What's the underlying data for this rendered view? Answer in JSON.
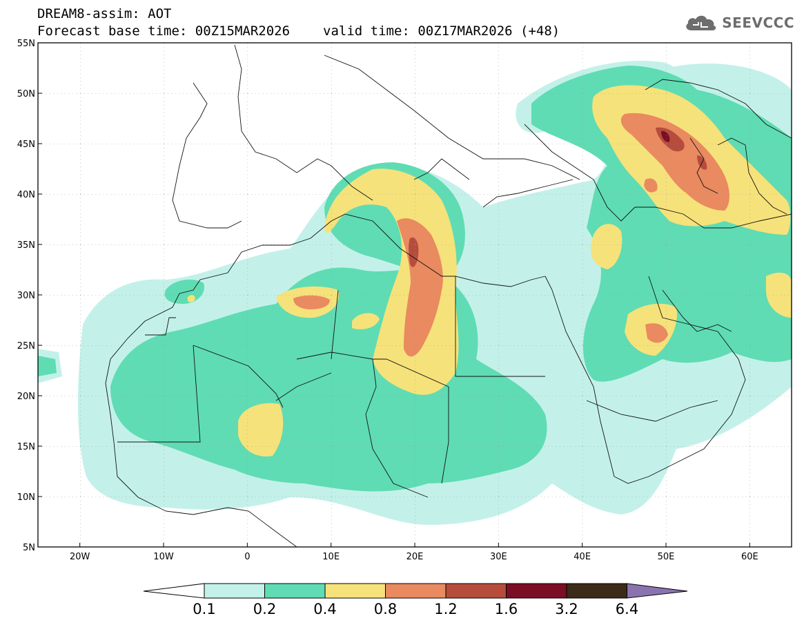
{
  "header": {
    "line1": "DREAM8-assim: AOT",
    "base_time": "Forecast base time: 00Z15MAR2026",
    "valid_time": "valid time: 00Z17MAR2026 (+48)"
  },
  "logo": {
    "text": "SEEVCCC",
    "icon": "cloud-icon"
  },
  "map": {
    "lat_range": [
      5,
      55
    ],
    "lon_range": [
      -25,
      65
    ],
    "lat_ticks": [
      "55N",
      "50N",
      "45N",
      "40N",
      "35N",
      "30N",
      "25N",
      "20N",
      "15N",
      "10N",
      "5N"
    ],
    "lon_ticks": [
      "20W",
      "10W",
      "0",
      "10E",
      "20E",
      "30E",
      "40E",
      "50E",
      "60E"
    ]
  },
  "colorbar": {
    "labels": [
      "0.1",
      "0.2",
      "0.4",
      "0.8",
      "1.2",
      "1.6",
      "3.2",
      "6.4"
    ],
    "colors": {
      "c1": "#c3f1ea",
      "c2": "#5fdcb3",
      "c3": "#f6e27a",
      "c4": "#e98a60",
      "c5": "#b54c3c",
      "c6": "#7a0e24",
      "c7": "#3a2a17",
      "c8": "#8b73b0"
    }
  }
}
